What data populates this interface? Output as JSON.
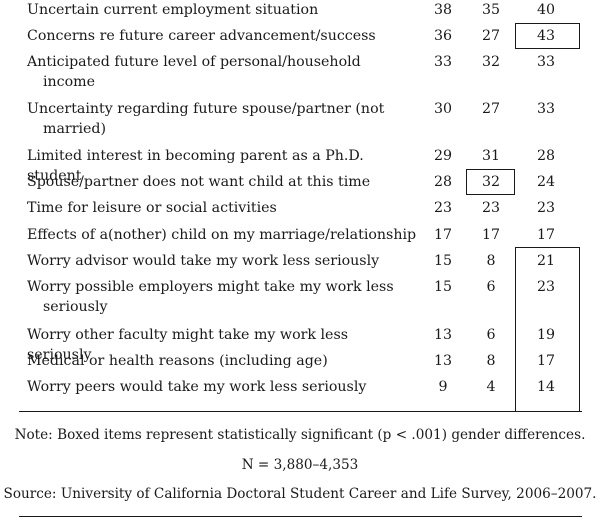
{
  "rows": [
    {
      "label": "Uncertain current employment situation",
      "a": "38",
      "b": "35",
      "c": "40"
    },
    {
      "label": "Concerns re future career advancement/success",
      "a": "36",
      "b": "27",
      "c": "43"
    },
    {
      "label": "Anticipated future level of personal/household",
      "label2": "income",
      "a": "33",
      "b": "32",
      "c": "33"
    },
    {
      "label": "Uncertainty regarding future spouse/partner (not",
      "label2": "married)",
      "a": "30",
      "b": "27",
      "c": "33"
    },
    {
      "label": "Limited interest in becoming parent as a Ph.D. student",
      "a": "29",
      "b": "31",
      "c": "28"
    },
    {
      "label": "Spouse/partner does not want child at this time",
      "a": "28",
      "b": "32",
      "c": "24"
    },
    {
      "label": "Time for leisure or social activities",
      "a": "23",
      "b": "23",
      "c": "23"
    },
    {
      "label": "Effects of a(nother) child on my marriage/relationship",
      "a": "17",
      "b": "17",
      "c": "17"
    },
    {
      "label": "Worry advisor would take my work less seriously",
      "a": "15",
      "b": "8",
      "c": "21"
    },
    {
      "label": "Worry possible employers might take my work less",
      "label2": "seriously",
      "a": "15",
      "b": "6",
      "c": "23"
    },
    {
      "label": "Worry other faculty might take my work less seriously",
      "a": "13",
      "b": "6",
      "c": "19"
    },
    {
      "label": "Medical or health reasons (including age)",
      "a": "13",
      "b": "8",
      "c": "17"
    },
    {
      "label": "Worry peers would take my work less seriously",
      "a": "9",
      "b": "4",
      "c": "14"
    }
  ],
  "notes": {
    "note": "Note: Boxed items represent statistically significant (p < .001) gender differences.",
    "n": "N = 3,880–4,353",
    "source": "Source: University of California Doctoral Student Career and Life Survey, 2006–2007."
  }
}
